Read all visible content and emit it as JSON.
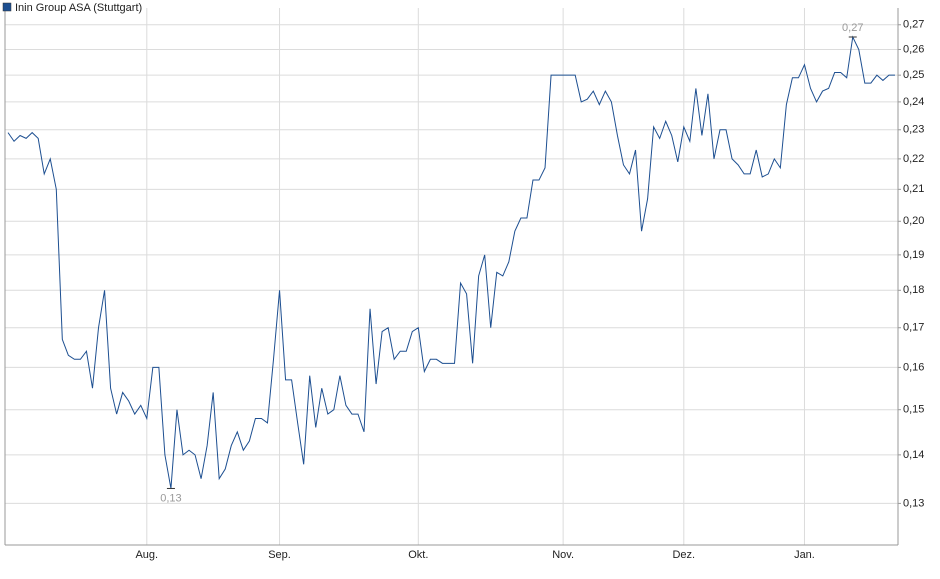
{
  "chart_data": {
    "type": "line",
    "log_scale": true,
    "grid": true,
    "legend": "top-left",
    "categories": [
      null,
      null,
      null,
      null,
      null,
      null,
      null,
      null,
      null,
      null,
      null,
      null,
      null,
      null,
      null,
      null,
      null,
      null,
      null,
      null,
      null,
      null,
      null,
      "Aug.",
      null,
      null,
      null,
      null,
      null,
      null,
      null,
      null,
      null,
      null,
      null,
      null,
      null,
      null,
      null,
      null,
      null,
      null,
      null,
      null,
      null,
      "Sep.",
      null,
      null,
      null,
      null,
      null,
      null,
      null,
      null,
      null,
      null,
      null,
      null,
      null,
      null,
      null,
      null,
      null,
      null,
      null,
      null,
      null,
      null,
      "Okt.",
      null,
      null,
      null,
      null,
      null,
      null,
      null,
      null,
      null,
      null,
      null,
      null,
      null,
      null,
      null,
      null,
      null,
      null,
      null,
      null,
      null,
      null,
      null,
      "Nov.",
      null,
      null,
      null,
      null,
      null,
      null,
      null,
      null,
      null,
      null,
      null,
      null,
      null,
      null,
      null,
      null,
      null,
      null,
      null,
      "Dez.",
      null,
      null,
      null,
      null,
      null,
      null,
      null,
      null,
      null,
      null,
      null,
      null,
      null,
      null,
      null,
      null,
      null,
      null,
      null,
      "Jan.",
      null,
      null,
      null,
      null,
      null,
      null,
      null,
      null,
      null,
      null,
      null,
      null,
      null,
      null,
      null
    ],
    "series": [
      {
        "name": "Inin Group ASA (Stuttgart)",
        "color": "#1d4f91",
        "values": [
          0.229,
          0.226,
          0.228,
          0.227,
          0.229,
          0.227,
          0.215,
          0.22,
          0.21,
          0.167,
          0.163,
          0.162,
          0.162,
          0.164,
          0.155,
          0.17,
          0.18,
          0.155,
          0.149,
          0.154,
          0.152,
          0.149,
          0.151,
          0.148,
          0.16,
          0.16,
          0.14,
          0.133,
          0.15,
          0.14,
          0.141,
          0.14,
          0.135,
          0.142,
          0.154,
          0.135,
          0.137,
          0.142,
          0.145,
          0.141,
          0.143,
          0.148,
          0.148,
          0.147,
          0.162,
          0.18,
          0.157,
          0.157,
          0.147,
          0.138,
          0.158,
          0.146,
          0.155,
          0.149,
          0.15,
          0.158,
          0.151,
          0.149,
          0.149,
          0.145,
          0.175,
          0.156,
          0.169,
          0.17,
          0.162,
          0.164,
          0.164,
          0.169,
          0.17,
          0.159,
          0.162,
          0.162,
          0.161,
          0.161,
          0.161,
          0.182,
          0.179,
          0.161,
          0.184,
          0.19,
          0.17,
          0.185,
          0.184,
          0.188,
          0.197,
          0.201,
          0.201,
          0.213,
          0.213,
          0.217,
          0.25,
          0.25,
          0.25,
          0.25,
          0.25,
          0.24,
          0.241,
          0.244,
          0.239,
          0.244,
          0.24,
          0.228,
          0.218,
          0.215,
          0.223,
          0.197,
          0.207,
          0.231,
          0.227,
          0.233,
          0.228,
          0.219,
          0.231,
          0.226,
          0.245,
          0.228,
          0.243,
          0.22,
          0.23,
          0.23,
          0.22,
          0.218,
          0.215,
          0.215,
          0.223,
          0.214,
          0.215,
          0.22,
          0.217,
          0.239,
          0.249,
          0.249,
          0.254,
          0.245,
          0.24,
          0.244,
          0.245,
          0.251,
          0.251,
          0.249,
          0.265,
          0.26,
          0.247,
          0.247,
          0.25,
          0.248,
          0.25,
          0.25
        ],
        "value_labels": [
          null,
          null,
          null,
          null,
          null,
          null,
          null,
          null,
          null,
          null,
          null,
          null,
          null,
          null,
          null,
          null,
          null,
          null,
          null,
          null,
          null,
          null,
          null,
          null,
          null,
          null,
          null,
          "0,13",
          null,
          null,
          null,
          null,
          null,
          null,
          null,
          null,
          null,
          null,
          null,
          null,
          null,
          null,
          null,
          null,
          null,
          null,
          null,
          null,
          null,
          null,
          null,
          null,
          null,
          null,
          null,
          null,
          null,
          null,
          null,
          null,
          null,
          null,
          null,
          null,
          null,
          null,
          null,
          null,
          null,
          null,
          null,
          null,
          null,
          null,
          null,
          null,
          null,
          null,
          null,
          null,
          null,
          null,
          null,
          null,
          null,
          null,
          null,
          null,
          null,
          null,
          null,
          null,
          null,
          null,
          null,
          null,
          null,
          null,
          null,
          null,
          null,
          null,
          null,
          null,
          null,
          null,
          null,
          null,
          null,
          null,
          null,
          null,
          null,
          null,
          null,
          null,
          null,
          null,
          null,
          null,
          null,
          null,
          null,
          null,
          null,
          null,
          null,
          null,
          null,
          null,
          null,
          null,
          null,
          null,
          null,
          null,
          null,
          null,
          null,
          null,
          "0,27",
          null,
          null,
          null,
          null,
          null,
          null,
          null
        ]
      }
    ],
    "ylim": [
      0.122,
      0.277
    ],
    "yticks": [
      {
        "value": 0.13,
        "label": "0,13"
      },
      {
        "value": 0.14,
        "label": "0,14"
      },
      {
        "value": 0.15,
        "label": "0,15"
      },
      {
        "value": 0.16,
        "label": "0,16"
      },
      {
        "value": 0.17,
        "label": "0,17"
      },
      {
        "value": 0.18,
        "label": "0,18"
      },
      {
        "value": 0.19,
        "label": "0,19"
      },
      {
        "value": 0.2,
        "label": "0,20"
      },
      {
        "value": 0.21,
        "label": "0,21"
      },
      {
        "value": 0.22,
        "label": "0,22"
      },
      {
        "value": 0.23,
        "label": "0,23"
      },
      {
        "value": 0.24,
        "label": "0,24"
      },
      {
        "value": 0.25,
        "label": "0,25"
      },
      {
        "value": 0.26,
        "label": "0,26"
      },
      {
        "value": 0.27,
        "label": "0,27"
      }
    ]
  }
}
